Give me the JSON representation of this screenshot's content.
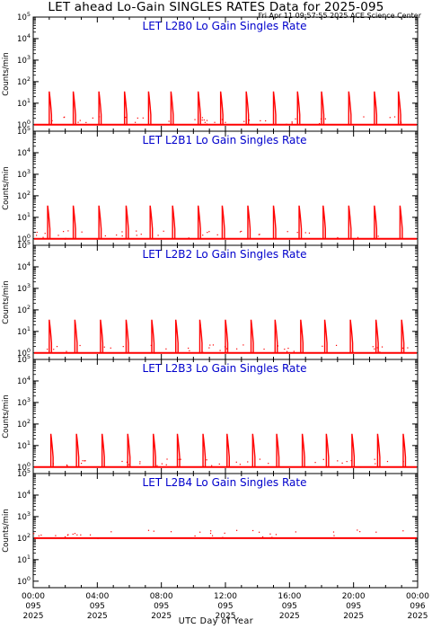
{
  "title": "LET ahead Lo-Gain SINGLES RATES Data for 2025-095",
  "timestamp": "Fri Apr 11 09:57:55 2025 ACE Science Center",
  "x_axis_title": "UTC Day of Year",
  "colors": {
    "data": "#ff0000",
    "panel_title": "#0000cc",
    "axes": "#000000"
  },
  "chart_data": [
    {
      "type": "line",
      "title": "LET L2B0 Lo Gain Singles Rate",
      "ylabel": "Counts/min",
      "yscale": "log",
      "ylim": [
        0.5,
        100000
      ],
      "y_ticks": [
        1,
        10,
        100,
        1000,
        10000,
        100000
      ],
      "xlim": [
        0,
        24
      ],
      "baseline": 1,
      "spike_peak": 35,
      "spike_hours": [
        1.0,
        2.5,
        4.1,
        5.7,
        7.2,
        8.6,
        10.3,
        11.7,
        13.3,
        15.0,
        16.5,
        18.0,
        19.7,
        21.3,
        22.8
      ]
    },
    {
      "type": "line",
      "title": "LET L2B1 Lo Gain Singles Rate",
      "ylabel": "Counts/min",
      "yscale": "log",
      "ylim": [
        0.5,
        100000
      ],
      "y_ticks": [
        1,
        10,
        100,
        1000,
        10000,
        100000
      ],
      "xlim": [
        0,
        24
      ],
      "baseline": 1,
      "spike_peak": 35,
      "spike_hours": [
        0.9,
        2.5,
        4.1,
        5.8,
        7.3,
        8.7,
        10.3,
        11.8,
        13.4,
        15.0,
        16.6,
        18.1,
        19.7,
        21.3,
        22.9
      ]
    },
    {
      "type": "line",
      "title": "LET L2B2 Lo Gain Singles Rate",
      "ylabel": "Counts/min",
      "yscale": "log",
      "ylim": [
        0.5,
        100000
      ],
      "y_ticks": [
        1,
        10,
        100,
        1000,
        10000,
        100000
      ],
      "xlim": [
        0,
        24
      ],
      "baseline": 1,
      "spike_peak": 35,
      "spike_hours": [
        1.0,
        2.6,
        4.2,
        5.8,
        7.4,
        8.9,
        10.4,
        12.0,
        13.6,
        15.1,
        16.7,
        18.2,
        19.8,
        21.4,
        23.0
      ]
    },
    {
      "type": "line",
      "title": "LET L2B3 Lo Gain Singles Rate",
      "ylabel": "Counts/min",
      "yscale": "log",
      "ylim": [
        0.5,
        100000
      ],
      "y_ticks": [
        1,
        10,
        100,
        1000,
        10000,
        100000
      ],
      "xlim": [
        0,
        24
      ],
      "baseline": 1,
      "spike_peak": 35,
      "spike_hours": [
        1.1,
        2.7,
        4.3,
        5.9,
        7.5,
        9.0,
        10.6,
        12.1,
        13.7,
        15.2,
        16.8,
        18.3,
        19.9,
        21.5,
        23.1
      ]
    },
    {
      "type": "line",
      "title": "LET L2B4 Lo Gain Singles Rate",
      "ylabel": "Counts/min",
      "yscale": "log",
      "ylim": [
        0.5,
        100000
      ],
      "y_ticks": [
        1,
        10,
        100,
        1000,
        10000,
        100000
      ],
      "xlim": [
        0,
        24
      ],
      "baseline": 100,
      "spike_peak": 100,
      "spike_hours": []
    }
  ],
  "x_ticks": [
    {
      "hour": 0,
      "time": "00:00",
      "doy": "095",
      "year": "2025"
    },
    {
      "hour": 4,
      "time": "04:00",
      "doy": "095",
      "year": "2025"
    },
    {
      "hour": 8,
      "time": "08:00",
      "doy": "095",
      "year": "2025"
    },
    {
      "hour": 12,
      "time": "12:00",
      "doy": "095",
      "year": "2025"
    },
    {
      "hour": 16,
      "time": "16:00",
      "doy": "095",
      "year": "2025"
    },
    {
      "hour": 20,
      "time": "20:00",
      "doy": "095",
      "year": "2025"
    },
    {
      "hour": 24,
      "time": "00:00",
      "doy": "096",
      "year": "2025"
    }
  ]
}
